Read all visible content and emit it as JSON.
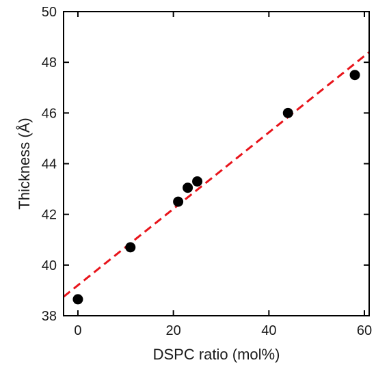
{
  "chart_data": {
    "type": "scatter",
    "title": "",
    "xlabel": "DSPC ratio (mol%)",
    "ylabel": "Thickness (Å)",
    "xlim": [
      -3,
      61
    ],
    "ylim": [
      38,
      50
    ],
    "x_ticks": [
      0,
      20,
      40,
      60
    ],
    "y_ticks": [
      38,
      40,
      42,
      44,
      46,
      48,
      50
    ],
    "x_tick_labels": [
      "0",
      "20",
      "40",
      "60"
    ],
    "y_tick_labels": [
      "38",
      "40",
      "42",
      "44",
      "46",
      "48",
      "50"
    ],
    "grid": false,
    "series": [
      {
        "type": "scatter",
        "marker": "filled-circle",
        "color": "#000000",
        "x": [
          0,
          11,
          21,
          23,
          25,
          44,
          58
        ],
        "y": [
          38.65,
          40.7,
          42.5,
          43.05,
          43.3,
          46.0,
          47.5
        ]
      },
      {
        "type": "line",
        "style": "dashed",
        "color": "#e8141b",
        "x": [
          -3,
          61
        ],
        "y": [
          38.75,
          48.4
        ]
      }
    ]
  }
}
